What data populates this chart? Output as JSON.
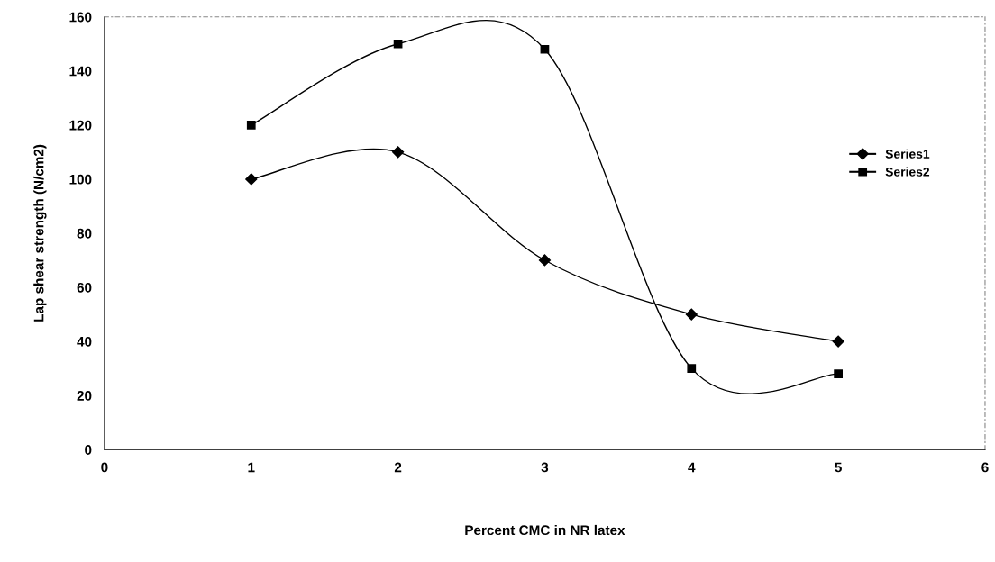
{
  "chart_data": {
    "type": "line",
    "xlabel": "Percent CMC in NR latex",
    "ylabel": "Lap shear strength (N/cm2)",
    "x": [
      1,
      2,
      3,
      4,
      5
    ],
    "series": [
      {
        "name": "Series1",
        "color": "#000000",
        "marker": "diamond",
        "values": [
          100,
          110,
          70,
          50,
          40
        ]
      },
      {
        "name": "Series2",
        "color": "#000000",
        "marker": "square",
        "values": [
          120,
          150,
          148,
          30,
          28
        ]
      }
    ],
    "xlim": [
      0,
      6
    ],
    "xticks": [
      0,
      1,
      2,
      3,
      4,
      5,
      6
    ],
    "ylim": [
      0,
      160
    ],
    "yticks": [
      0,
      20,
      40,
      60,
      80,
      100,
      120,
      140,
      160
    ],
    "grid": false,
    "legend": "right",
    "line_style": "solid"
  }
}
